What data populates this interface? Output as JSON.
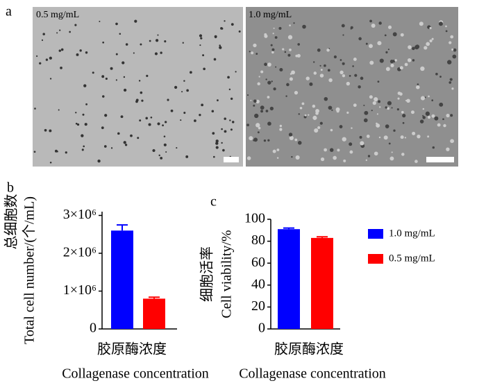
{
  "panels": {
    "a": "a",
    "b": "b",
    "c": "c"
  },
  "images": [
    {
      "label": "0.5 mg/mL"
    },
    {
      "label": "1.0 mg/mL"
    }
  ],
  "chart_data": [
    {
      "type": "bar",
      "ylabel": [
        "总细胞数",
        "Total cell number/(个/mL)"
      ],
      "xlabel": [
        "胶原酶浓度",
        "Collagenase concentration"
      ],
      "categories": [
        null
      ],
      "series": [
        {
          "name": "1.0 mg/mL",
          "color": "#0000ff",
          "values": [
            2600000
          ],
          "errors": [
            150000
          ]
        },
        {
          "name": "0.5 mg/mL",
          "color": "#ff0000",
          "values": [
            800000
          ],
          "errors": [
            40000
          ]
        }
      ],
      "ylim": [
        0,
        3100000
      ],
      "yticks": [
        0,
        {
          "value": 1000000,
          "label": "1×10⁶"
        },
        {
          "value": 2000000,
          "label": "2×10⁶"
        },
        {
          "value": 3000000,
          "label": "3×10⁶"
        }
      ]
    },
    {
      "type": "bar",
      "ylabel": [
        "细胞活率",
        "Cell viability/%"
      ],
      "xlabel": [
        "胶原酶浓度",
        "Collagenase concentration"
      ],
      "categories": [
        null
      ],
      "series": [
        {
          "name": "1.0 mg/mL",
          "color": "#0000ff",
          "values": [
            91
          ],
          "errors": [
            1
          ]
        },
        {
          "name": "0.5 mg/mL",
          "color": "#ff0000",
          "values": [
            83
          ],
          "errors": [
            1
          ]
        }
      ],
      "ylim": [
        0,
        100
      ],
      "yticks": [
        0,
        20,
        40,
        60,
        80,
        100
      ],
      "legend": "right"
    }
  ]
}
